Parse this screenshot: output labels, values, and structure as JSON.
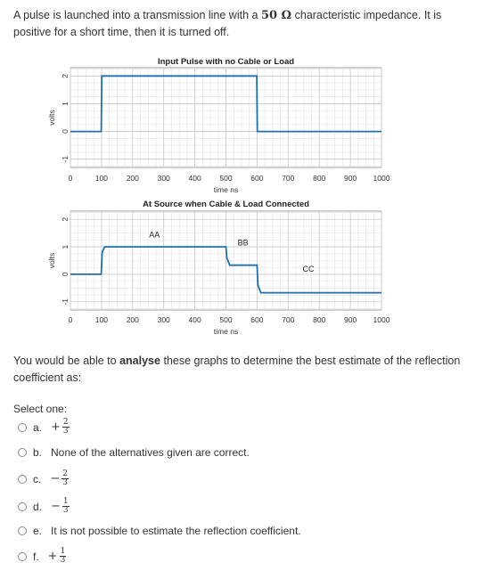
{
  "question": {
    "part1": "A pulse is launched into a transmission line with a ",
    "impedance": "50 Ω",
    "part2": " characteristic impedance. It is positive for a short time, then it is turned off.",
    "para2_pre": "You would be able to ",
    "para2_bold": "analyse",
    "para2_post": " these graphs to determine the best estimate of the reflection coefficient as:"
  },
  "select_label": "Select one:",
  "options": [
    {
      "letter": "a.",
      "sign": "+",
      "num": "2",
      "den": "3",
      "text": ""
    },
    {
      "letter": "b.",
      "sign": "",
      "num": "",
      "den": "",
      "text": "None of the alternatives given are correct."
    },
    {
      "letter": "c.",
      "sign": "−",
      "num": "2",
      "den": "3",
      "text": ""
    },
    {
      "letter": "d.",
      "sign": "−",
      "num": "1",
      "den": "3",
      "text": ""
    },
    {
      "letter": "e.",
      "sign": "",
      "num": "",
      "den": "",
      "text": "It is not possible to estimate the reflection coefficient."
    },
    {
      "letter": "f.",
      "sign": "+",
      "num": "1",
      "den": "3",
      "text": ""
    }
  ],
  "chart_data": [
    {
      "type": "line",
      "title": "Input Pulse with no Cable or Load",
      "xlabel": "time ns",
      "ylabel": "volts",
      "xlim": [
        0,
        1000
      ],
      "ylim": [
        -1.3,
        2.3
      ],
      "xticks": [
        "0",
        "100",
        "200",
        "300",
        "400",
        "500",
        "600",
        "700",
        "800",
        "900",
        "1000"
      ],
      "yticks": [
        "2",
        "1",
        "0",
        "-1"
      ],
      "grid": true,
      "series": [
        {
          "color": "#1f6fb2",
          "x": [
            0,
            99,
            101,
            599,
            601,
            1000
          ],
          "y": [
            0,
            0,
            2,
            2,
            0,
            0
          ]
        }
      ],
      "annotations": []
    },
    {
      "type": "line",
      "title": "At Source when Cable & Load Connected",
      "xlabel": "time ns",
      "ylabel": "volts",
      "xlim": [
        0,
        1000
      ],
      "ylim": [
        -1.3,
        2.3
      ],
      "xticks": [
        "0",
        "100",
        "200",
        "300",
        "400",
        "500",
        "600",
        "700",
        "800",
        "900",
        "1000"
      ],
      "yticks": [
        "2",
        "1",
        "0",
        "-1"
      ],
      "grid": true,
      "series": [
        {
          "color": "#1f6fb2",
          "x": [
            0,
            99,
            102,
            110,
            500,
            503,
            512,
            600,
            603,
            612,
            1000
          ],
          "y": [
            0,
            0,
            0.8,
            1.0,
            1.0,
            0.6,
            0.33,
            0.33,
            -0.4,
            -0.67,
            -0.67
          ]
        }
      ],
      "annotations": [
        {
          "text": "AA",
          "x": 270,
          "y": 1.35
        },
        {
          "text": "BB",
          "x": 555,
          "y": 1.05
        },
        {
          "text": "CC",
          "x": 765,
          "y": 0.1
        }
      ]
    }
  ]
}
